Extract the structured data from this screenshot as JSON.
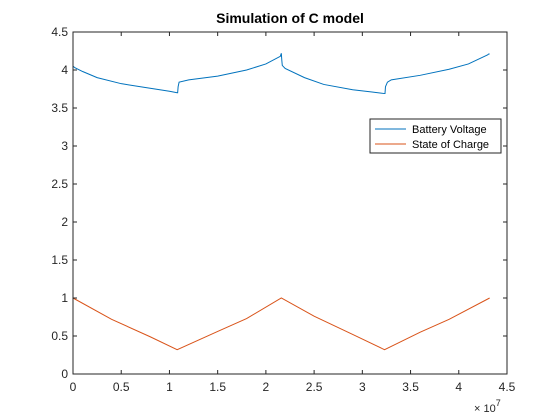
{
  "chart_data": {
    "type": "line",
    "title": "Simulation of C model",
    "xlabel": "",
    "ylabel": "",
    "x_exponent_label": "× 10",
    "x_exponent_power": "7",
    "xlim": [
      0,
      4.5
    ],
    "ylim": [
      0,
      4.5
    ],
    "x_ticks": [
      "0",
      "0.5",
      "1",
      "1.5",
      "2",
      "2.5",
      "3",
      "3.5",
      "4",
      "4.5"
    ],
    "y_ticks": [
      "0",
      "0.5",
      "1",
      "1.5",
      "2",
      "2.5",
      "3",
      "3.5",
      "4",
      "4.5"
    ],
    "grid": false,
    "legend_position": "upper-right",
    "series": [
      {
        "name": "Battery Voltage",
        "color": "#0072BD",
        "x": [
          0,
          0.02,
          0.1,
          0.25,
          0.5,
          0.75,
          1.0,
          1.08,
          1.085,
          1.09,
          1.1,
          1.2,
          1.5,
          1.8,
          2.0,
          2.15,
          2.16,
          2.165,
          2.17,
          2.2,
          2.4,
          2.6,
          2.9,
          3.1,
          3.23,
          3.235,
          3.24,
          3.26,
          3.3,
          3.6,
          3.9,
          4.1,
          4.3,
          4.31,
          4.32
        ],
        "y": [
          4.05,
          4.03,
          3.98,
          3.9,
          3.82,
          3.77,
          3.72,
          3.7,
          3.7,
          3.78,
          3.84,
          3.87,
          3.92,
          4.0,
          4.08,
          4.18,
          4.22,
          4.13,
          4.06,
          4.02,
          3.9,
          3.81,
          3.74,
          3.71,
          3.69,
          3.69,
          3.78,
          3.84,
          3.87,
          3.93,
          4.01,
          4.08,
          4.2,
          4.21,
          4.21
        ]
      },
      {
        "name": "State of Charge",
        "color": "#D95319",
        "x": [
          0,
          0.4,
          0.8,
          1.08,
          1.5,
          1.8,
          2.16,
          2.5,
          2.9,
          3.23,
          3.6,
          3.9,
          4.32
        ],
        "y": [
          1.0,
          0.72,
          0.49,
          0.32,
          0.56,
          0.73,
          1.0,
          0.76,
          0.52,
          0.32,
          0.55,
          0.72,
          1.0
        ]
      }
    ]
  }
}
